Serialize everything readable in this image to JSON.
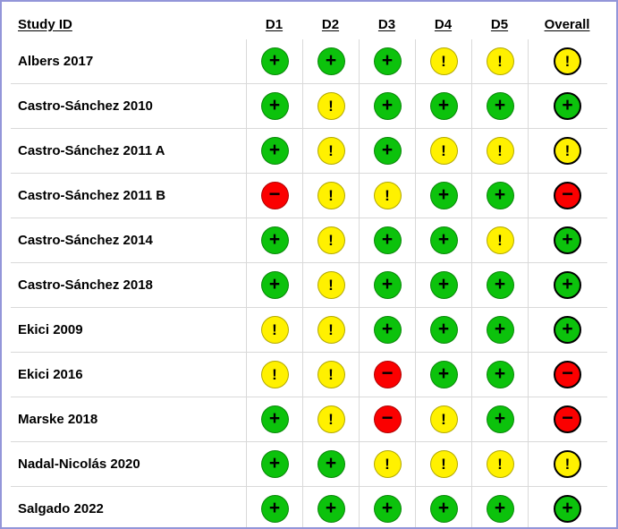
{
  "colors": {
    "low_risk_green": "#0cc20c",
    "some_concerns_yellow": "#fff100",
    "high_risk_red": "#fb0000",
    "symbol_black": "#000000",
    "grid_line": "#d9d9d9",
    "figure_border": "#9396d9"
  },
  "chart_data": {
    "type": "table",
    "title": "",
    "columns": [
      "Study ID",
      "D1",
      "D2",
      "D3",
      "D4",
      "D5",
      "Overall"
    ],
    "judgement_legend": {
      "+": "low risk (green circle)",
      "!": "some concerns (yellow circle)",
      "-": "high risk (red circle)"
    },
    "display_symbols": {
      "+": "+",
      "!": "!",
      "-": "−"
    },
    "rows": [
      {
        "study": "Albers 2017",
        "judgements": [
          "+",
          "+",
          "+",
          "!",
          "!",
          "!"
        ]
      },
      {
        "study": "Castro-Sánchez 2010",
        "judgements": [
          "+",
          "!",
          "+",
          "+",
          "+",
          "+"
        ]
      },
      {
        "study": "Castro-Sánchez 2011 A",
        "judgements": [
          "+",
          "!",
          "+",
          "!",
          "!",
          "!"
        ]
      },
      {
        "study": "Castro-Sánchez 2011 B",
        "judgements": [
          "-",
          "!",
          "!",
          "+",
          "+",
          "-"
        ]
      },
      {
        "study": "Castro-Sánchez 2014",
        "judgements": [
          "+",
          "!",
          "+",
          "+",
          "!",
          "+"
        ]
      },
      {
        "study": "Castro-Sánchez 2018",
        "judgements": [
          "+",
          "!",
          "+",
          "+",
          "+",
          "+"
        ]
      },
      {
        "study": "Ekici 2009",
        "judgements": [
          "!",
          "!",
          "+",
          "+",
          "+",
          "+"
        ]
      },
      {
        "study": "Ekici 2016",
        "judgements": [
          "!",
          "!",
          "-",
          "+",
          "+",
          "-"
        ]
      },
      {
        "study": "Marske 2018",
        "judgements": [
          "+",
          "!",
          "-",
          "!",
          "+",
          "-"
        ]
      },
      {
        "study": "Nadal-Nicolás 2020",
        "judgements": [
          "+",
          "+",
          "!",
          "!",
          "!",
          "!"
        ]
      },
      {
        "study": "Salgado 2022",
        "judgements": [
          "+",
          "+",
          "+",
          "+",
          "+",
          "+"
        ]
      }
    ]
  }
}
